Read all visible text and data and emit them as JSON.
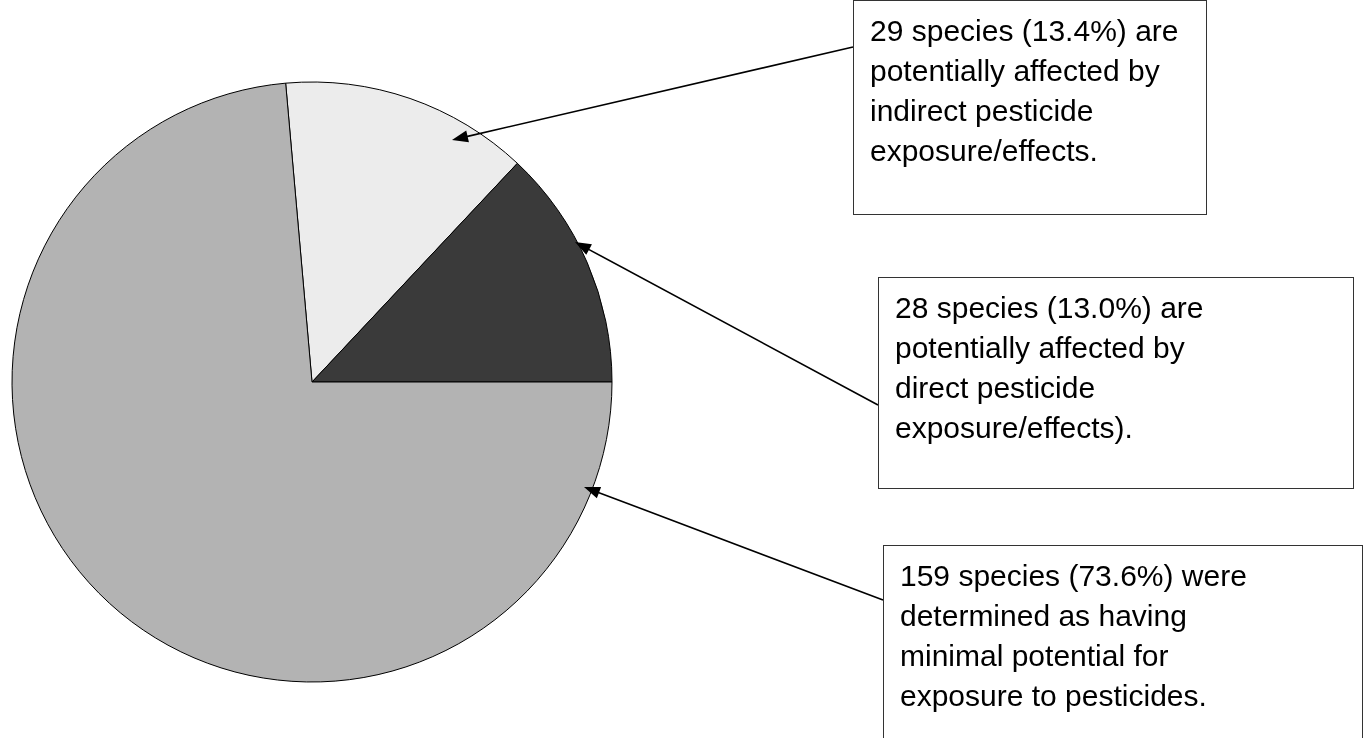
{
  "chart_data": {
    "type": "pie",
    "categories": [
      null,
      null,
      null
    ],
    "values": [
      13.4,
      13.0,
      73.6
    ],
    "colors": [
      "#ececec",
      "#3a3a3a",
      "#b3b3b3"
    ],
    "annotations": [
      "29 species (13.4%) are potentially affected by indirect pesticide exposure/effects.",
      "28 species (13.0%) are potentially affected by direct pesticide exposure/effects).",
      "159 species (73.6%) were determined as having minimal potential for exposure to pesticides."
    ]
  }
}
